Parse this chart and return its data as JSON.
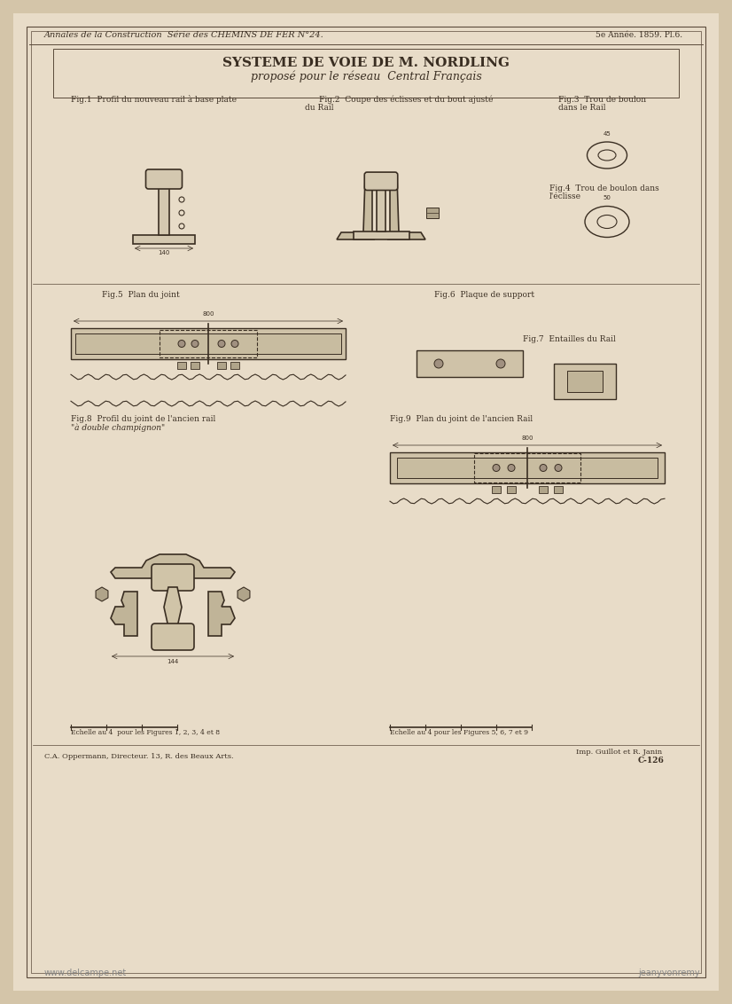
{
  "page_bg": "#d4c5a9",
  "paper_bg": "#e8dcc8",
  "border_color": "#5a4a3a",
  "line_color": "#3a2e22",
  "header_text": "Annales de la Construction  Série des CHEMINS DE FER N°24.",
  "header_right": "5e Année. 1859. Pl.6.",
  "title_line1": "SYSTEME DE VOIE DE M. NORDLING",
  "title_line2": "proposé pour le réseau  Central Français",
  "fig1_label": "Fig.1  Profil du nouveau rail à base plate",
  "fig2_label": "Fig.2  Coupe des éclisses et du bout ajusté",
  "fig2_label2": "du Rail",
  "fig3_label": "Fig.3  Trou de boulon",
  "fig3_label2": "dans le Rail",
  "fig4_label": "Fig.4  Trou de boulon dans",
  "fig4_label2": "l'éclisse",
  "fig5_label": "Fig.5  Plan du joint",
  "fig6_label": "Fig.6  Plaque de support",
  "fig7_label": "Fig.7  Entailles du Rail",
  "fig8_label": "Fig.8  Profil du joint de l'ancien rail",
  "fig8_label2": "\"à double champignon\"",
  "fig9_label": "Fig.9  Plan du joint de l'ancien Rail",
  "scale_left": "Echelle au 4  pour les Figures 1, 2, 3, 4 et 8",
  "scale_right": "Echelle au 4 pour les Figures 5, 6, 7 et 9",
  "footer_left": "C.A. Oppermann, Directeur. 13, R. des Beaux Arts.",
  "footer_right": "Imp. Guillot et R. Janin",
  "footer_code": "C-126",
  "watermark_left": "www.delcampe.net",
  "watermark_right": "jeanyvonremy"
}
